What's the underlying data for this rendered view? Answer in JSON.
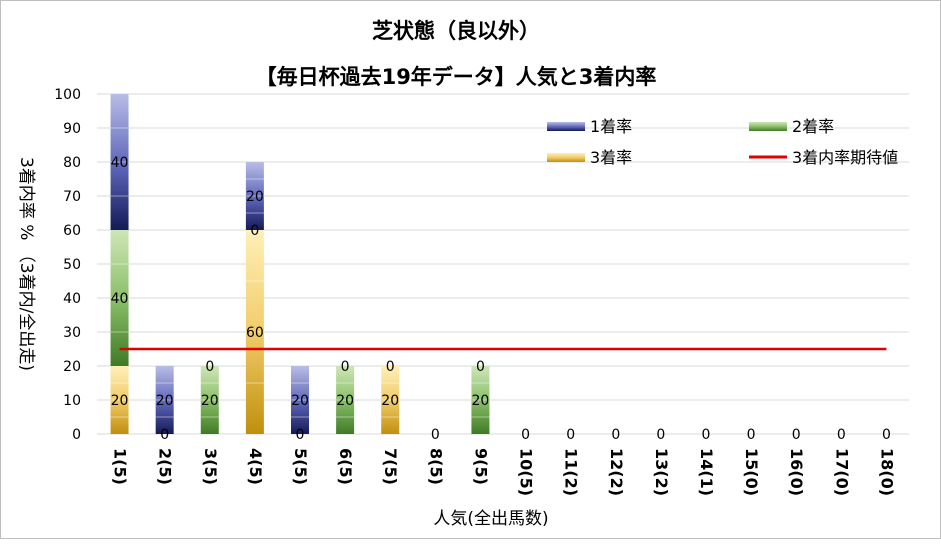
{
  "chart_data": {
    "type": "bar",
    "stacked": true,
    "title": "芝状態（良以外）",
    "subtitle": "【毎日杯過去19年データ】人気と3着内率",
    "xlabel": "人気(全出馬数)",
    "ylabel": "3着内率 % （3着内/全出走)",
    "ylim": [
      0,
      100
    ],
    "yticks": [
      "0",
      "10",
      "20",
      "30",
      "40",
      "50",
      "60",
      "70",
      "80",
      "90",
      "100"
    ],
    "grid": true,
    "legend_position": "top-right",
    "categories": [
      "1(5)",
      "2(5)",
      "3(5)",
      "4(5)",
      "5(5)",
      "6(5)",
      "7(5)",
      "8(5)",
      "9(5)",
      "10(5)",
      "11(2)",
      "12(2)",
      "13(2)",
      "14(1)",
      "15(0)",
      "16(0)",
      "17(0)",
      "18(0)"
    ],
    "series": [
      {
        "name": "3着率",
        "values": [
          20,
          0,
          0,
          60,
          0,
          0,
          20,
          0,
          0,
          0,
          0,
          0,
          0,
          0,
          0,
          0,
          0,
          0
        ],
        "labels": [
          "20",
          "",
          "",
          "60",
          "",
          "",
          "20",
          "0",
          "",
          "0",
          "0",
          "0",
          "0",
          "0",
          "0",
          "0",
          "0",
          "0"
        ],
        "color": "#c9960c"
      },
      {
        "name": "2着率",
        "values": [
          40,
          0,
          20,
          0,
          0,
          20,
          0,
          0,
          20,
          0,
          0,
          0,
          0,
          0,
          0,
          0,
          0,
          0
        ],
        "labels": [
          "40",
          "0",
          "20",
          "0",
          "0",
          "20",
          "",
          "",
          "20",
          "",
          "",
          "",
          "",
          "",
          "",
          "",
          "",
          ""
        ],
        "color": "#4f8a2f"
      },
      {
        "name": "1着率",
        "values": [
          40,
          20,
          0,
          20,
          20,
          0,
          0,
          0,
          0,
          0,
          0,
          0,
          0,
          0,
          0,
          0,
          0,
          0
        ],
        "labels": [
          "40",
          "20",
          "0",
          "20",
          "20",
          "0",
          "0",
          "",
          "0",
          "",
          "",
          "",
          "",
          "",
          "",
          "",
          "",
          ""
        ],
        "color": "#2a2d7a"
      }
    ],
    "expected_line": {
      "name": "3着内率期待値",
      "value": 25,
      "color": "#e00000"
    }
  }
}
